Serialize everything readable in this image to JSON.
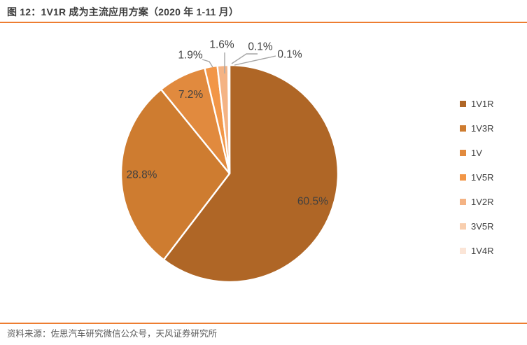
{
  "header": {
    "title": "图 12：1V1R 成为主流应用方案（2020 年 1-11 月）"
  },
  "footer": {
    "source": "资料来源：佐思汽车研究微信公众号，天风证券研究所"
  },
  "chart_data": {
    "type": "pie",
    "title": "1V1R 成为主流应用方案（2020 年 1-11 月）",
    "categories": [
      "1V1R",
      "1V3R",
      "1V",
      "1V5R",
      "1V2R",
      "3V5R",
      "1V4R"
    ],
    "values": [
      60.5,
      28.8,
      7.2,
      1.9,
      1.6,
      0.1,
      0.1
    ],
    "labels": [
      "60.5%",
      "28.8%",
      "7.2%",
      "1.9%",
      "1.6%",
      "0.1%",
      "0.1%"
    ],
    "colors": [
      "#AF6626",
      "#CE7C30",
      "#E18A3E",
      "#F29647",
      "#F4B384",
      "#F8CEAE",
      "#FBE5D7"
    ],
    "start_angle_deg": 0,
    "direction": "clockwise",
    "legend_position": "right",
    "grid": false,
    "accent_rule_color": "#ED7D31",
    "label_color": "#404040",
    "leader_line_color": "#A6A6A6",
    "slice_gap_color": "#FFFFFF"
  }
}
